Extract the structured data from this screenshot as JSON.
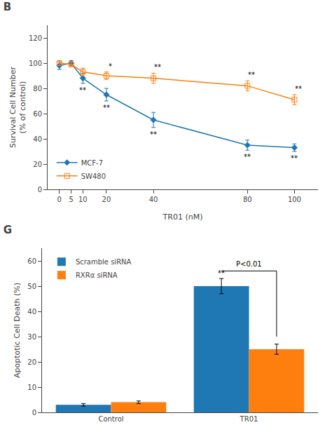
{
  "chart_data": [
    {
      "type": "line",
      "title": "B",
      "x": [
        0,
        5,
        10,
        20,
        40,
        80,
        100
      ],
      "series": [
        {
          "name": "MCF-7",
          "marker": "diamond",
          "line_style": "solid",
          "values": [
            98,
            100,
            88,
            75,
            55,
            35,
            33
          ],
          "error": [
            3,
            2,
            4,
            5,
            6,
            4,
            3
          ],
          "annotations": [
            null,
            null,
            "**",
            "**",
            "**",
            "**",
            "**"
          ]
        },
        {
          "name": "SW480",
          "marker": "square-open",
          "line_style": "solid",
          "values": [
            100,
            99,
            93,
            90,
            88,
            82,
            71
          ],
          "error": [
            2,
            2,
            3,
            3,
            4,
            4,
            4
          ],
          "annotations": [
            null,
            null,
            null,
            "*",
            "**",
            "**",
            "**"
          ]
        }
      ],
      "xlabel": "TR01 (nM)",
      "ylabel": "Survival Cell Number\n(% of control)",
      "xlim": [
        -5,
        110
      ],
      "xticks": [
        0,
        5,
        10,
        20,
        40,
        80,
        100
      ],
      "ylim": [
        0,
        130
      ],
      "yticks": [
        0,
        20,
        40,
        60,
        80,
        100,
        120
      ],
      "grid": false,
      "legend": "lower left"
    },
    {
      "type": "bar",
      "title": "G",
      "categories": [
        "Control",
        "TR01"
      ],
      "series": [
        {
          "name": "Scramble siRNA",
          "values": [
            3,
            50
          ],
          "error": [
            0.5,
            3
          ]
        },
        {
          "name": "RXRα siRNA",
          "values": [
            4,
            25
          ],
          "error": [
            0.5,
            2
          ]
        }
      ],
      "ylabel": "Apoptotic Cell Death (%)",
      "ylim": [
        0,
        65
      ],
      "yticks": [
        0,
        10,
        20,
        30,
        40,
        50,
        60
      ],
      "annotations": [
        {
          "x": "TR01",
          "series": "Scramble siRNA",
          "text": "**"
        },
        {
          "x": "TR01",
          "y": 56,
          "text": "P<0.01"
        }
      ],
      "grid": false,
      "legend": "upper left"
    }
  ]
}
